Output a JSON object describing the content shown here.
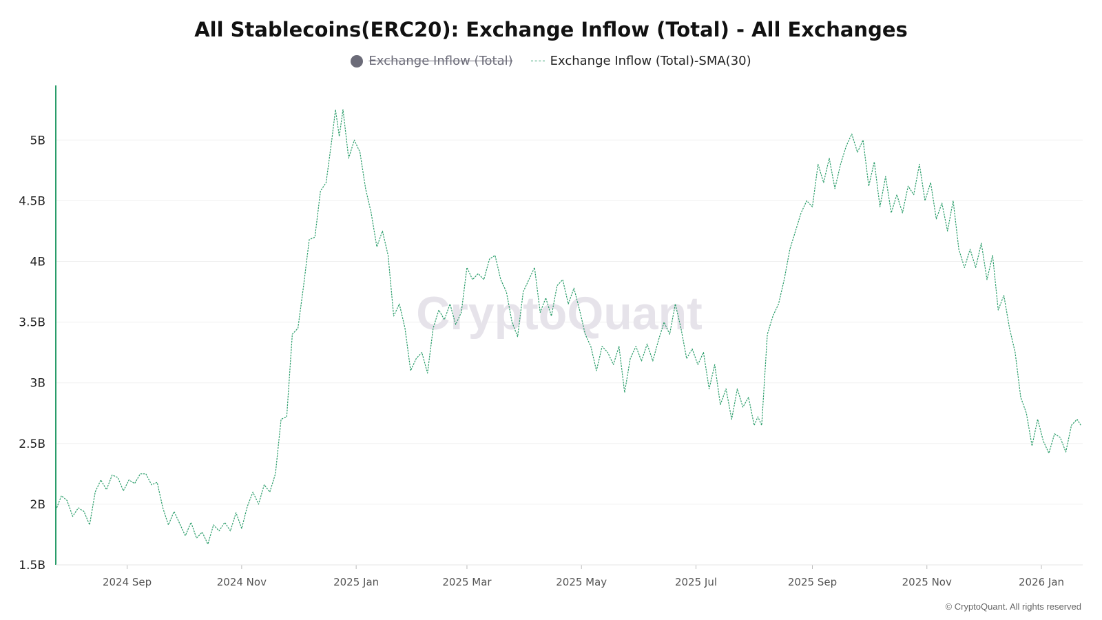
{
  "chart_data": {
    "type": "line",
    "title": "All Stablecoins(ERC20): Exchange Inflow (Total) - All Exchanges",
    "series": [
      {
        "name": "Exchange Inflow (Total)",
        "hidden": true,
        "color": "#6b6b78"
      },
      {
        "name": "Exchange Inflow (Total)-SMA(30)",
        "color": "#2a9d6a",
        "style": "dashed",
        "points": [
          [
            "2024-07-25",
            1.95
          ],
          [
            "2024-07-28",
            2.07
          ],
          [
            "2024-07-31",
            2.03
          ],
          [
            "2024-08-03",
            1.9
          ],
          [
            "2024-08-06",
            1.97
          ],
          [
            "2024-08-09",
            1.94
          ],
          [
            "2024-08-12",
            1.83
          ],
          [
            "2024-08-15",
            2.1
          ],
          [
            "2024-08-18",
            2.2
          ],
          [
            "2024-08-21",
            2.12
          ],
          [
            "2024-08-24",
            2.24
          ],
          [
            "2024-08-27",
            2.22
          ],
          [
            "2024-08-30",
            2.11
          ],
          [
            "2024-09-02",
            2.2
          ],
          [
            "2024-09-05",
            2.17
          ],
          [
            "2024-09-08",
            2.25
          ],
          [
            "2024-09-11",
            2.25
          ],
          [
            "2024-09-14",
            2.16
          ],
          [
            "2024-09-17",
            2.18
          ],
          [
            "2024-09-20",
            1.97
          ],
          [
            "2024-09-23",
            1.83
          ],
          [
            "2024-09-26",
            1.94
          ],
          [
            "2024-09-29",
            1.84
          ],
          [
            "2024-10-02",
            1.74
          ],
          [
            "2024-10-05",
            1.85
          ],
          [
            "2024-10-08",
            1.72
          ],
          [
            "2024-10-11",
            1.77
          ],
          [
            "2024-10-14",
            1.67
          ],
          [
            "2024-10-17",
            1.83
          ],
          [
            "2024-10-20",
            1.78
          ],
          [
            "2024-10-23",
            1.85
          ],
          [
            "2024-10-26",
            1.78
          ],
          [
            "2024-10-29",
            1.93
          ],
          [
            "2024-11-01",
            1.8
          ],
          [
            "2024-11-04",
            1.98
          ],
          [
            "2024-11-07",
            2.1
          ],
          [
            "2024-11-10",
            2.0
          ],
          [
            "2024-11-13",
            2.16
          ],
          [
            "2024-11-16",
            2.1
          ],
          [
            "2024-11-19",
            2.25
          ],
          [
            "2024-11-22",
            2.7
          ],
          [
            "2024-11-25",
            2.72
          ],
          [
            "2024-11-28",
            3.4
          ],
          [
            "2024-12-01",
            3.45
          ],
          [
            "2024-12-04",
            3.8
          ],
          [
            "2024-12-07",
            4.18
          ],
          [
            "2024-12-10",
            4.2
          ],
          [
            "2024-12-13",
            4.58
          ],
          [
            "2024-12-16",
            4.65
          ],
          [
            "2024-12-19",
            5.0
          ],
          [
            "2024-12-21",
            5.25
          ],
          [
            "2024-12-23",
            5.03
          ],
          [
            "2024-12-25",
            5.25
          ],
          [
            "2024-12-28",
            4.85
          ],
          [
            "2024-12-31",
            5.0
          ],
          [
            "2025-01-03",
            4.9
          ],
          [
            "2025-01-06",
            4.6
          ],
          [
            "2025-01-09",
            4.4
          ],
          [
            "2025-01-12",
            4.12
          ],
          [
            "2025-01-15",
            4.25
          ],
          [
            "2025-01-18",
            4.05
          ],
          [
            "2025-01-21",
            3.55
          ],
          [
            "2025-01-24",
            3.65
          ],
          [
            "2025-01-27",
            3.45
          ],
          [
            "2025-01-30",
            3.1
          ],
          [
            "2025-02-02",
            3.2
          ],
          [
            "2025-02-05",
            3.25
          ],
          [
            "2025-02-08",
            3.08
          ],
          [
            "2025-02-11",
            3.45
          ],
          [
            "2025-02-14",
            3.6
          ],
          [
            "2025-02-17",
            3.52
          ],
          [
            "2025-02-20",
            3.65
          ],
          [
            "2025-02-23",
            3.48
          ],
          [
            "2025-02-26",
            3.58
          ],
          [
            "2025-03-01",
            3.95
          ],
          [
            "2025-03-04",
            3.85
          ],
          [
            "2025-03-07",
            3.9
          ],
          [
            "2025-03-10",
            3.85
          ],
          [
            "2025-03-13",
            4.02
          ],
          [
            "2025-03-16",
            4.05
          ],
          [
            "2025-03-19",
            3.85
          ],
          [
            "2025-03-22",
            3.75
          ],
          [
            "2025-03-25",
            3.5
          ],
          [
            "2025-03-28",
            3.38
          ],
          [
            "2025-03-31",
            3.75
          ],
          [
            "2025-04-03",
            3.85
          ],
          [
            "2025-04-06",
            3.95
          ],
          [
            "2025-04-09",
            3.58
          ],
          [
            "2025-04-12",
            3.7
          ],
          [
            "2025-04-15",
            3.55
          ],
          [
            "2025-04-18",
            3.8
          ],
          [
            "2025-04-21",
            3.85
          ],
          [
            "2025-04-24",
            3.65
          ],
          [
            "2025-04-27",
            3.78
          ],
          [
            "2025-04-30",
            3.6
          ],
          [
            "2025-05-03",
            3.4
          ],
          [
            "2025-05-06",
            3.3
          ],
          [
            "2025-05-09",
            3.1
          ],
          [
            "2025-05-12",
            3.3
          ],
          [
            "2025-05-15",
            3.25
          ],
          [
            "2025-05-18",
            3.15
          ],
          [
            "2025-05-21",
            3.3
          ],
          [
            "2025-05-24",
            2.92
          ],
          [
            "2025-05-27",
            3.2
          ],
          [
            "2025-05-30",
            3.3
          ],
          [
            "2025-06-02",
            3.18
          ],
          [
            "2025-06-05",
            3.32
          ],
          [
            "2025-06-08",
            3.18
          ],
          [
            "2025-06-11",
            3.35
          ],
          [
            "2025-06-14",
            3.5
          ],
          [
            "2025-06-17",
            3.4
          ],
          [
            "2025-06-20",
            3.65
          ],
          [
            "2025-06-23",
            3.45
          ],
          [
            "2025-06-26",
            3.2
          ],
          [
            "2025-06-29",
            3.28
          ],
          [
            "2025-07-02",
            3.15
          ],
          [
            "2025-07-05",
            3.25
          ],
          [
            "2025-07-08",
            2.95
          ],
          [
            "2025-07-11",
            3.15
          ],
          [
            "2025-07-14",
            2.82
          ],
          [
            "2025-07-17",
            2.95
          ],
          [
            "2025-07-20",
            2.7
          ],
          [
            "2025-07-23",
            2.95
          ],
          [
            "2025-07-26",
            2.8
          ],
          [
            "2025-07-29",
            2.88
          ],
          [
            "2025-08-01",
            2.65
          ],
          [
            "2025-08-03",
            2.72
          ],
          [
            "2025-08-05",
            2.65
          ],
          [
            "2025-08-08",
            3.4
          ],
          [
            "2025-08-11",
            3.55
          ],
          [
            "2025-08-14",
            3.65
          ],
          [
            "2025-08-17",
            3.85
          ],
          [
            "2025-08-20",
            4.1
          ],
          [
            "2025-08-23",
            4.25
          ],
          [
            "2025-08-26",
            4.4
          ],
          [
            "2025-08-29",
            4.5
          ],
          [
            "2025-09-01",
            4.45
          ],
          [
            "2025-09-04",
            4.8
          ],
          [
            "2025-09-07",
            4.65
          ],
          [
            "2025-09-10",
            4.85
          ],
          [
            "2025-09-13",
            4.6
          ],
          [
            "2025-09-16",
            4.8
          ],
          [
            "2025-09-19",
            4.95
          ],
          [
            "2025-09-22",
            5.05
          ],
          [
            "2025-09-25",
            4.9
          ],
          [
            "2025-09-28",
            5.0
          ],
          [
            "2025-10-01",
            4.62
          ],
          [
            "2025-10-04",
            4.82
          ],
          [
            "2025-10-07",
            4.45
          ],
          [
            "2025-10-10",
            4.7
          ],
          [
            "2025-10-13",
            4.4
          ],
          [
            "2025-10-16",
            4.55
          ],
          [
            "2025-10-19",
            4.4
          ],
          [
            "2025-10-22",
            4.62
          ],
          [
            "2025-10-25",
            4.55
          ],
          [
            "2025-10-28",
            4.8
          ],
          [
            "2025-10-31",
            4.5
          ],
          [
            "2025-11-03",
            4.65
          ],
          [
            "2025-11-06",
            4.35
          ],
          [
            "2025-11-09",
            4.48
          ],
          [
            "2025-11-12",
            4.25
          ],
          [
            "2025-11-15",
            4.5
          ],
          [
            "2025-11-18",
            4.1
          ],
          [
            "2025-11-21",
            3.95
          ],
          [
            "2025-11-24",
            4.1
          ],
          [
            "2025-11-27",
            3.95
          ],
          [
            "2025-11-30",
            4.15
          ],
          [
            "2025-12-03",
            3.85
          ],
          [
            "2025-12-06",
            4.05
          ],
          [
            "2025-12-09",
            3.6
          ],
          [
            "2025-12-12",
            3.72
          ],
          [
            "2025-12-15",
            3.45
          ],
          [
            "2025-12-18",
            3.25
          ],
          [
            "2025-12-21",
            2.88
          ],
          [
            "2025-12-24",
            2.75
          ],
          [
            "2025-12-27",
            2.48
          ],
          [
            "2025-12-30",
            2.7
          ],
          [
            "2026-01-02",
            2.52
          ],
          [
            "2026-01-05",
            2.42
          ],
          [
            "2026-01-08",
            2.58
          ],
          [
            "2026-01-11",
            2.55
          ],
          [
            "2026-01-14",
            2.43
          ],
          [
            "2026-01-17",
            2.65
          ],
          [
            "2026-01-20",
            2.7
          ],
          [
            "2026-01-22",
            2.65
          ]
        ]
      }
    ],
    "xlabel": "",
    "ylabel": "",
    "xlim": [
      "2024-07-25",
      "2026-01-23"
    ],
    "ylim": [
      1.5,
      5.45
    ],
    "y_ticks": [
      {
        "value": 1.5,
        "label": "1.5B"
      },
      {
        "value": 2.0,
        "label": "2B"
      },
      {
        "value": 2.5,
        "label": "2.5B"
      },
      {
        "value": 3.0,
        "label": "3B"
      },
      {
        "value": 3.5,
        "label": "3.5B"
      },
      {
        "value": 4.0,
        "label": "4B"
      },
      {
        "value": 4.5,
        "label": "4.5B"
      },
      {
        "value": 5.0,
        "label": "5B"
      }
    ],
    "x_ticks": [
      {
        "date": "2024-09-01",
        "label": "2024 Sep"
      },
      {
        "date": "2024-11-01",
        "label": "2024 Nov"
      },
      {
        "date": "2025-01-01",
        "label": "2025 Jan"
      },
      {
        "date": "2025-03-01",
        "label": "2025 Mar"
      },
      {
        "date": "2025-05-01",
        "label": "2025 May"
      },
      {
        "date": "2025-07-01",
        "label": "2025 Jul"
      },
      {
        "date": "2025-09-01",
        "label": "2025 Sep"
      },
      {
        "date": "2025-11-01",
        "label": "2025 Nov"
      },
      {
        "date": "2026-01-01",
        "label": "2026 Jan"
      }
    ],
    "grid": true,
    "legend_position": "top-center",
    "watermark": "CryptoQuant"
  },
  "copyright": "© CryptoQuant. All rights reserved"
}
